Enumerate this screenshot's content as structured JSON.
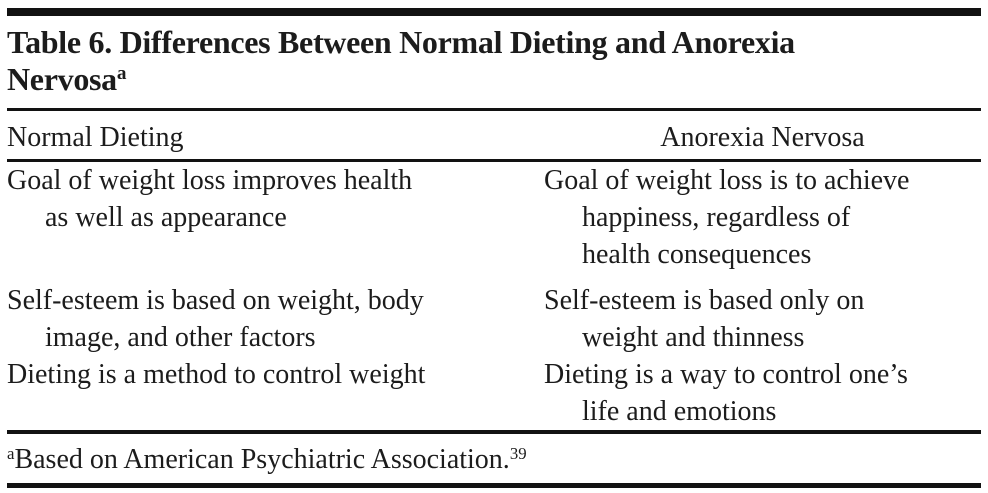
{
  "title": {
    "line1": "Table 6. Differences Between Normal Dieting and Anorexia",
    "line2": "Nervosa",
    "superscript": "a"
  },
  "table": {
    "header": {
      "left": "Normal Dieting",
      "right": "Anorexia Nervosa"
    },
    "rows": [
      {
        "left_lines": [
          "Goal of weight loss improves health",
          "as well as appearance"
        ],
        "right_lines": [
          "Goal of weight loss is to achieve",
          "happiness, regardless of",
          "health consequences"
        ]
      },
      {
        "left_lines": [
          "Self-esteem is based on weight, body",
          "image, and other factors"
        ],
        "right_lines": [
          "Self-esteem is based only on",
          "weight and thinness"
        ]
      },
      {
        "left_lines": [
          "Dieting is a method to control weight"
        ],
        "right_lines": [
          "Dieting is a way to control one’s",
          "life and emotions"
        ]
      }
    ]
  },
  "footnote": {
    "marker": "a",
    "text": "Based on American Psychiatric Association.",
    "reference": "39"
  },
  "colors": {
    "text": "#1c1c1c",
    "rule": "#121212",
    "background": "#ffffff"
  }
}
